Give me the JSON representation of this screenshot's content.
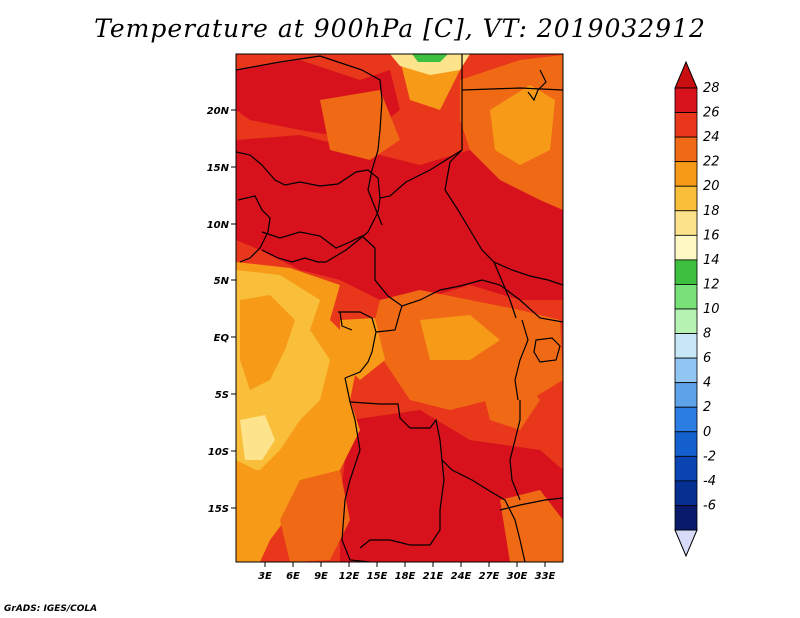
{
  "title": "Temperature at 900hPa [C], VT: 2019032912",
  "credit": "GrADS: IGES/COLA",
  "map": {
    "lon_ticks": [
      "3E",
      "6E",
      "9E",
      "12E",
      "15E",
      "18E",
      "21E",
      "24E",
      "27E",
      "30E",
      "33E"
    ],
    "lat_ticks": [
      "20N",
      "15N",
      "10N",
      "5N",
      "EQ",
      "5S",
      "10S",
      "15S"
    ]
  },
  "colorbar": {
    "levels": [
      "28",
      "26",
      "24",
      "22",
      "20",
      "18",
      "16",
      "14",
      "12",
      "10",
      "8",
      "6",
      "4",
      "2",
      "0",
      "-2",
      "-4",
      "-6"
    ],
    "colors": [
      "#d7121c",
      "#e8371a",
      "#f06a16",
      "#f79a18",
      "#f9bf3a",
      "#fde38b",
      "#fdf8c3",
      "#3fbf3f",
      "#78e278",
      "#b6f3b2",
      "#c7e7f8",
      "#92c6f2",
      "#5ea3ea",
      "#2c7de3",
      "#1460cf",
      "#0b44b3",
      "#062f92",
      "#0a1a6a"
    ],
    "cap_top_color": "#c90e12",
    "cap_bottom_color": "#d8dcf8"
  }
}
